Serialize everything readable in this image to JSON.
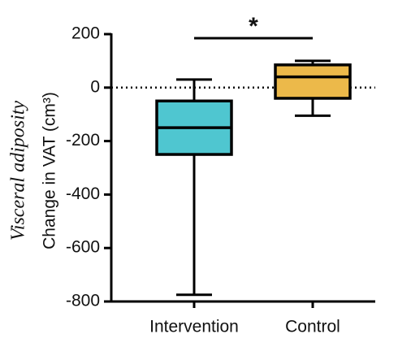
{
  "chart_data": {
    "type": "box",
    "y_label_script": "Visceral adiposity",
    "y_label": "Change in VAT (cm³)",
    "annotation": "*",
    "categories": [
      "Intervention",
      "Control"
    ],
    "boxes": [
      {
        "color": "#4fc6d0",
        "min": -775,
        "q1": -250,
        "median": -150,
        "q3": -50,
        "max": 30
      },
      {
        "color": "#ecb94a",
        "min": -105,
        "q1": -40,
        "median": 40,
        "q3": 85,
        "max": 100
      }
    ],
    "reference_line": 0,
    "ylim": [
      -800,
      200
    ],
    "yticks": [
      -800,
      -600,
      -400,
      -200,
      0,
      200
    ]
  }
}
